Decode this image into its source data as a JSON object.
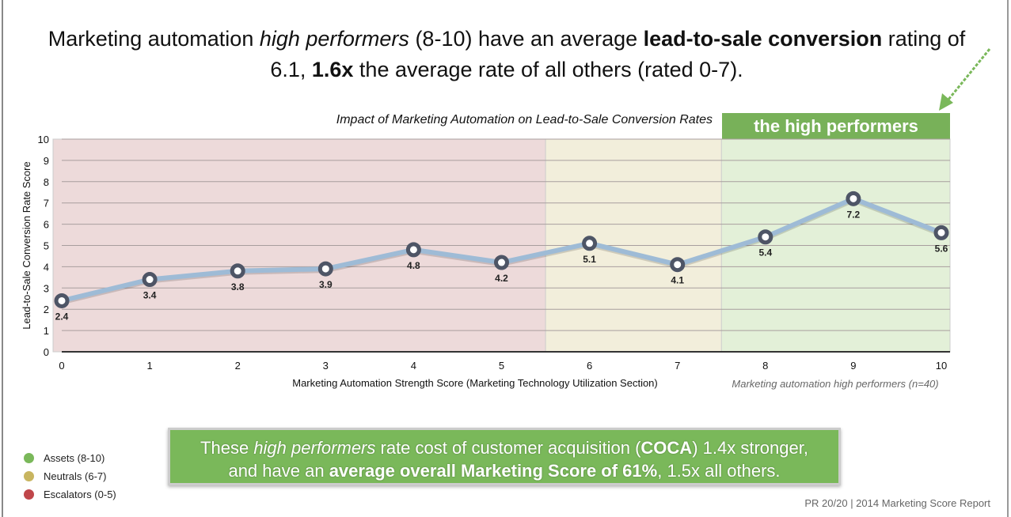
{
  "headline": {
    "p1": "Marketing automation ",
    "p2": "high performers",
    "p3": " (8-10) have an average ",
    "p4": "lead-to-sale conversion",
    "p5": " rating of 6.1, ",
    "p6": "1.6x",
    "p7": " the average rate of all others (rated 0-7)."
  },
  "high_performers_label": "the high performers",
  "x_note": "Marketing automation high performers (n=40)",
  "colors": {
    "escalators": "#c0464a",
    "neutrals": "#c8b560",
    "assets": "#7ab85a",
    "line": "#9ebbd6",
    "marker": "#4e5566",
    "band_red": "#eddada",
    "band_yellow": "#f2eedb",
    "band_green": "#e3f0d8"
  },
  "chart_data": {
    "type": "line",
    "title": "Impact of Marketing Automation on Lead-to-Sale Conversion Rates",
    "xlabel": "Marketing Automation Strength Score (Marketing Technology Utilization Section)",
    "ylabel": "Lead-to-Sale Conversion Rate Score",
    "x": [
      0,
      1,
      2,
      3,
      4,
      5,
      6,
      7,
      8,
      9,
      10
    ],
    "values": [
      2.4,
      3.4,
      3.8,
      3.9,
      4.8,
      4.2,
      5.1,
      4.1,
      5.4,
      7.2,
      5.6
    ],
    "data_labels": [
      "2.4",
      "3.4",
      "3.8",
      "3.9",
      "4.8",
      "4.2",
      "5.1",
      "4.1",
      "5.4",
      "7.2",
      "5.6"
    ],
    "xlim": [
      0,
      10
    ],
    "ylim": [
      0,
      10
    ],
    "yticks": [
      "0",
      "1",
      "2",
      "3",
      "4",
      "5",
      "6",
      "7",
      "8",
      "9",
      "10"
    ],
    "xticks": [
      "0",
      "1",
      "2",
      "3",
      "4",
      "5",
      "6",
      "7",
      "8",
      "9",
      "10"
    ],
    "grid": true,
    "bands": [
      {
        "name": "Escalators",
        "from": 0,
        "to": 5,
        "color": "#eddada"
      },
      {
        "name": "Neutrals",
        "from": 6,
        "to": 7,
        "color": "#f2eedb"
      },
      {
        "name": "Assets",
        "from": 8,
        "to": 10,
        "color": "#e3f0d8"
      }
    ]
  },
  "legend": [
    {
      "label": "Assets (8-10)",
      "color": "#7ab85a"
    },
    {
      "label": "Neutrals (6-7)",
      "color": "#c8b560"
    },
    {
      "label": "Escalators (0-5)",
      "color": "#c0464a"
    }
  ],
  "callout": {
    "a": "These ",
    "b": "high performers",
    "c": " rate cost of customer acquisition (",
    "d": "COCA",
    "e": ") 1.4x stronger,",
    "f": "and have an ",
    "g": "average overall Marketing Score of 61%",
    "h": ", 1.5x all others."
  },
  "footer": "PR 20/20 | 2014 Marketing Score Report"
}
